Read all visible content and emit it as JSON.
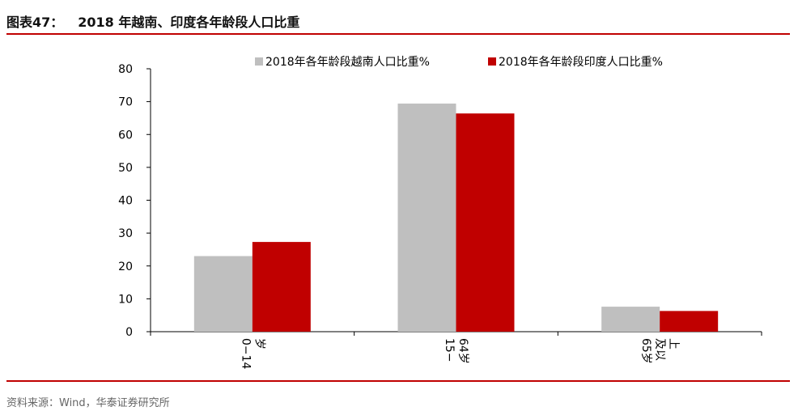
{
  "header": {
    "figure_label": "图表47：",
    "title": "2018 年越南、印度各年龄段人口比重"
  },
  "source": "资料来源：Wind，华泰证券研究所",
  "colors": {
    "accent": "#c00000",
    "series_vietnam": "#bfbfbf",
    "series_india": "#c00000"
  },
  "chart_data": {
    "type": "bar",
    "categories": [
      "0−14岁",
      "15−64岁",
      "65岁及以上"
    ],
    "category_lines": [
      [
        "0−14",
        "岁"
      ],
      [
        "15−",
        "64岁"
      ],
      [
        "65岁",
        "及以",
        "上"
      ]
    ],
    "series": [
      {
        "name": "2018年各年龄段越南人口比重%",
        "values": [
          23.0,
          69.4,
          7.6
        ]
      },
      {
        "name": "2018年各年龄段印度人口比重%",
        "values": [
          27.3,
          66.4,
          6.3
        ]
      }
    ],
    "ylim": [
      0,
      80
    ],
    "yticks": [
      0,
      10,
      20,
      30,
      40,
      50,
      60,
      70,
      80
    ],
    "legend_position": "top",
    "grid": false
  }
}
